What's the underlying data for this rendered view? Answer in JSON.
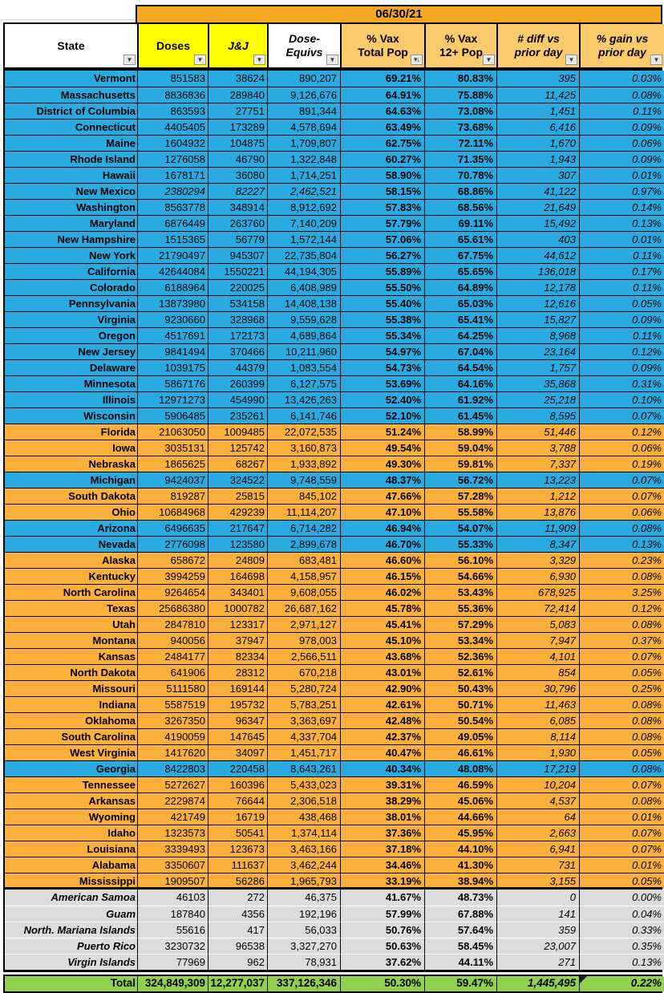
{
  "date": "06/30/21",
  "icons": {
    "filter_dropdown": "▼",
    "sorted_filter": "▾↓"
  },
  "colors": {
    "blue": "#29ABE2",
    "orange": "#FBB03B",
    "yellow": "#FFFF00",
    "date_orange": "#F7A823",
    "header_orange": "#FBCA6B",
    "terr_gray": "#DCDCDC",
    "green": "#92D050"
  },
  "columns": [
    {
      "key": "state",
      "label": "State"
    },
    {
      "key": "doses",
      "label": "Doses"
    },
    {
      "key": "jj",
      "label": "J&J"
    },
    {
      "key": "equiv",
      "label": "Dose-\nEquivs"
    },
    {
      "key": "vax_total",
      "label": "% Vax\nTotal Pop",
      "sorted": true
    },
    {
      "key": "vax_12",
      "label": "% Vax\n12+ Pop"
    },
    {
      "key": "diff",
      "label": "# diff vs\nprior day"
    },
    {
      "key": "gain",
      "label": "% gain vs\nprior day"
    }
  ],
  "state_rows": [
    {
      "state": "Vermont",
      "doses": "851583",
      "jj": "38624",
      "equiv": "890,207",
      "vax_total": "69.21%",
      "vax_12": "80.83%",
      "diff": "395",
      "gain": "0.03%",
      "bg": "blue"
    },
    {
      "state": "Massachusetts",
      "doses": "8836836",
      "jj": "289840",
      "equiv": "9,126,676",
      "vax_total": "64.91%",
      "vax_12": "75.88%",
      "diff": "11,425",
      "gain": "0.08%",
      "bg": "blue"
    },
    {
      "state": "District of Columbia",
      "doses": "863593",
      "jj": "27751",
      "equiv": "891,344",
      "vax_total": "64.63%",
      "vax_12": "73.08%",
      "diff": "1,451",
      "gain": "0.11%",
      "bg": "blue"
    },
    {
      "state": "Connecticut",
      "doses": "4405405",
      "jj": "173289",
      "equiv": "4,578,694",
      "vax_total": "63.49%",
      "vax_12": "73.68%",
      "diff": "6,416",
      "gain": "0.09%",
      "bg": "blue"
    },
    {
      "state": "Maine",
      "doses": "1604932",
      "jj": "104875",
      "equiv": "1,709,807",
      "vax_total": "62.75%",
      "vax_12": "72.11%",
      "diff": "1,670",
      "gain": "0.06%",
      "bg": "blue"
    },
    {
      "state": "Rhode Island",
      "doses": "1276058",
      "jj": "46790",
      "equiv": "1,322,848",
      "vax_total": "60.27%",
      "vax_12": "71.35%",
      "diff": "1,943",
      "gain": "0.09%",
      "bg": "blue"
    },
    {
      "state": "Hawaii",
      "doses": "1678171",
      "jj": "36080",
      "equiv": "1,714,251",
      "vax_total": "58.90%",
      "vax_12": "70.78%",
      "diff": "307",
      "gain": "0.01%",
      "bg": "blue"
    },
    {
      "state": "New Mexico",
      "doses": "2380294",
      "jj": "82227",
      "equiv": "2,462,521",
      "vax_total": "58.15%",
      "vax_12": "68.86%",
      "diff": "41,122",
      "gain": "0.97%",
      "bg": "blue",
      "italic_values": true
    },
    {
      "state": "Washington",
      "doses": "8563778",
      "jj": "348914",
      "equiv": "8,912,692",
      "vax_total": "57.83%",
      "vax_12": "68.56%",
      "diff": "21,649",
      "gain": "0.14%",
      "bg": "blue"
    },
    {
      "state": "Maryland",
      "doses": "6876449",
      "jj": "263760",
      "equiv": "7,140,209",
      "vax_total": "57.79%",
      "vax_12": "69.11%",
      "diff": "15,492",
      "gain": "0.13%",
      "bg": "blue"
    },
    {
      "state": "New Hampshire",
      "doses": "1515365",
      "jj": "56779",
      "equiv": "1,572,144",
      "vax_total": "57.06%",
      "vax_12": "65.61%",
      "diff": "403",
      "gain": "0.01%",
      "bg": "blue"
    },
    {
      "state": "New York",
      "doses": "21790497",
      "jj": "945307",
      "equiv": "22,735,804",
      "vax_total": "56.27%",
      "vax_12": "67.75%",
      "diff": "44,612",
      "gain": "0.11%",
      "bg": "blue"
    },
    {
      "state": "California",
      "doses": "42644084",
      "jj": "1550221",
      "equiv": "44,194,305",
      "vax_total": "55.89%",
      "vax_12": "65.65%",
      "diff": "136,018",
      "gain": "0.17%",
      "bg": "blue"
    },
    {
      "state": "Colorado",
      "doses": "6188964",
      "jj": "220025",
      "equiv": "6,408,989",
      "vax_total": "55.50%",
      "vax_12": "64.89%",
      "diff": "12,178",
      "gain": "0.11%",
      "bg": "blue"
    },
    {
      "state": "Pennsylvania",
      "doses": "13873980",
      "jj": "534158",
      "equiv": "14,408,138",
      "vax_total": "55.40%",
      "vax_12": "65.03%",
      "diff": "12,616",
      "gain": "0.05%",
      "bg": "blue"
    },
    {
      "state": "Virginia",
      "doses": "9230660",
      "jj": "328968",
      "equiv": "9,559,628",
      "vax_total": "55.38%",
      "vax_12": "65.41%",
      "diff": "15,827",
      "gain": "0.09%",
      "bg": "blue"
    },
    {
      "state": "Oregon",
      "doses": "4517691",
      "jj": "172173",
      "equiv": "4,689,864",
      "vax_total": "55.34%",
      "vax_12": "64.25%",
      "diff": "8,968",
      "gain": "0.11%",
      "bg": "blue"
    },
    {
      "state": "New Jersey",
      "doses": "9841494",
      "jj": "370466",
      "equiv": "10,211,960",
      "vax_total": "54.97%",
      "vax_12": "67.04%",
      "diff": "23,164",
      "gain": "0.12%",
      "bg": "blue"
    },
    {
      "state": "Delaware",
      "doses": "1039175",
      "jj": "44379",
      "equiv": "1,083,554",
      "vax_total": "54.73%",
      "vax_12": "64.54%",
      "diff": "1,757",
      "gain": "0.09%",
      "bg": "blue"
    },
    {
      "state": "Minnesota",
      "doses": "5867176",
      "jj": "260399",
      "equiv": "6,127,575",
      "vax_total": "53.69%",
      "vax_12": "64.16%",
      "diff": "35,868",
      "gain": "0.31%",
      "bg": "blue"
    },
    {
      "state": "Illinois",
      "doses": "12971273",
      "jj": "454990",
      "equiv": "13,426,263",
      "vax_total": "52.40%",
      "vax_12": "61.92%",
      "diff": "25,218",
      "gain": "0.10%",
      "bg": "blue"
    },
    {
      "state": "Wisconsin",
      "doses": "5906485",
      "jj": "235261",
      "equiv": "6,141,746",
      "vax_total": "52.10%",
      "vax_12": "61.45%",
      "diff": "8,595",
      "gain": "0.07%",
      "bg": "blue"
    },
    {
      "state": "Florida",
      "doses": "21063050",
      "jj": "1009485",
      "equiv": "22,072,535",
      "vax_total": "51.24%",
      "vax_12": "58.99%",
      "diff": "51,446",
      "gain": "0.12%",
      "bg": "orange"
    },
    {
      "state": "Iowa",
      "doses": "3035131",
      "jj": "125742",
      "equiv": "3,160,873",
      "vax_total": "49.54%",
      "vax_12": "59.04%",
      "diff": "3,788",
      "gain": "0.06%",
      "bg": "orange"
    },
    {
      "state": "Nebraska",
      "doses": "1865625",
      "jj": "68267",
      "equiv": "1,933,892",
      "vax_total": "49.30%",
      "vax_12": "59.81%",
      "diff": "7,337",
      "gain": "0.19%",
      "bg": "orange"
    },
    {
      "state": "Michigan",
      "doses": "9424037",
      "jj": "324522",
      "equiv": "9,748,559",
      "vax_total": "48.37%",
      "vax_12": "56.72%",
      "diff": "13,223",
      "gain": "0.07%",
      "bg": "blue"
    },
    {
      "state": "South Dakota",
      "doses": "819287",
      "jj": "25815",
      "equiv": "845,102",
      "vax_total": "47.66%",
      "vax_12": "57.28%",
      "diff": "1,212",
      "gain": "0.07%",
      "bg": "orange"
    },
    {
      "state": "Ohio",
      "doses": "10684968",
      "jj": "429239",
      "equiv": "11,114,207",
      "vax_total": "47.10%",
      "vax_12": "55.58%",
      "diff": "13,876",
      "gain": "0.06%",
      "bg": "orange"
    },
    {
      "state": "Arizona",
      "doses": "6496635",
      "jj": "217647",
      "equiv": "6,714,282",
      "vax_total": "46.94%",
      "vax_12": "54.07%",
      "diff": "11,909",
      "gain": "0.08%",
      "bg": "blue"
    },
    {
      "state": "Nevada",
      "doses": "2776098",
      "jj": "123580",
      "equiv": "2,899,678",
      "vax_total": "46.70%",
      "vax_12": "55.33%",
      "diff": "8,347",
      "gain": "0.13%",
      "bg": "blue"
    },
    {
      "state": "Alaska",
      "doses": "658672",
      "jj": "24809",
      "equiv": "683,481",
      "vax_total": "46.60%",
      "vax_12": "56.10%",
      "diff": "3,329",
      "gain": "0.23%",
      "bg": "orange"
    },
    {
      "state": "Kentucky",
      "doses": "3994259",
      "jj": "164698",
      "equiv": "4,158,957",
      "vax_total": "46.15%",
      "vax_12": "54.66%",
      "diff": "6,930",
      "gain": "0.08%",
      "bg": "orange"
    },
    {
      "state": "North Carolina",
      "doses": "9264654",
      "jj": "343401",
      "equiv": "9,608,055",
      "vax_total": "46.02%",
      "vax_12": "53.43%",
      "diff": "678,925",
      "gain": "3.25%",
      "bg": "orange"
    },
    {
      "state": "Texas",
      "doses": "25686380",
      "jj": "1000782",
      "equiv": "26,687,162",
      "vax_total": "45.78%",
      "vax_12": "55.36%",
      "diff": "72,414",
      "gain": "0.12%",
      "bg": "orange"
    },
    {
      "state": "Utah",
      "doses": "2847810",
      "jj": "123317",
      "equiv": "2,971,127",
      "vax_total": "45.41%",
      "vax_12": "57.29%",
      "diff": "5,083",
      "gain": "0.08%",
      "bg": "orange"
    },
    {
      "state": "Montana",
      "doses": "940056",
      "jj": "37947",
      "equiv": "978,003",
      "vax_total": "45.10%",
      "vax_12": "53.34%",
      "diff": "7,947",
      "gain": "0.37%",
      "bg": "orange"
    },
    {
      "state": "Kansas",
      "doses": "2484177",
      "jj": "82334",
      "equiv": "2,566,511",
      "vax_total": "43.68%",
      "vax_12": "52.36%",
      "diff": "4,101",
      "gain": "0.07%",
      "bg": "orange"
    },
    {
      "state": "North Dakota",
      "doses": "641906",
      "jj": "28312",
      "equiv": "670,218",
      "vax_total": "43.01%",
      "vax_12": "52.61%",
      "diff": "854",
      "gain": "0.05%",
      "bg": "orange"
    },
    {
      "state": "Missouri",
      "doses": "5111580",
      "jj": "169144",
      "equiv": "5,280,724",
      "vax_total": "42.90%",
      "vax_12": "50.43%",
      "diff": "30,796",
      "gain": "0.25%",
      "bg": "orange"
    },
    {
      "state": "Indiana",
      "doses": "5587519",
      "jj": "195732",
      "equiv": "5,783,251",
      "vax_total": "42.61%",
      "vax_12": "50.71%",
      "diff": "11,463",
      "gain": "0.08%",
      "bg": "orange"
    },
    {
      "state": "Oklahoma",
      "doses": "3267350",
      "jj": "96347",
      "equiv": "3,363,697",
      "vax_total": "42.48%",
      "vax_12": "50.54%",
      "diff": "6,085",
      "gain": "0.08%",
      "bg": "orange"
    },
    {
      "state": "South Carolina",
      "doses": "4190059",
      "jj": "147645",
      "equiv": "4,337,704",
      "vax_total": "42.37%",
      "vax_12": "49.05%",
      "diff": "8,114",
      "gain": "0.08%",
      "bg": "orange"
    },
    {
      "state": "West Virginia",
      "doses": "1417620",
      "jj": "34097",
      "equiv": "1,451,717",
      "vax_total": "40.47%",
      "vax_12": "46.61%",
      "diff": "1,930",
      "gain": "0.05%",
      "bg": "orange"
    },
    {
      "state": "Georgia",
      "doses": "8422803",
      "jj": "220458",
      "equiv": "8,643,261",
      "vax_total": "40.34%",
      "vax_12": "48.08%",
      "diff": "17,219",
      "gain": "0.08%",
      "bg": "blue"
    },
    {
      "state": "Tennessee",
      "doses": "5272627",
      "jj": "160396",
      "equiv": "5,433,023",
      "vax_total": "39.31%",
      "vax_12": "46.59%",
      "diff": "10,204",
      "gain": "0.07%",
      "bg": "orange"
    },
    {
      "state": "Arkansas",
      "doses": "2229874",
      "jj": "76644",
      "equiv": "2,306,518",
      "vax_total": "38.29%",
      "vax_12": "45.06%",
      "diff": "4,537",
      "gain": "0.08%",
      "bg": "orange"
    },
    {
      "state": "Wyoming",
      "doses": "421749",
      "jj": "16719",
      "equiv": "438,468",
      "vax_total": "38.01%",
      "vax_12": "44.66%",
      "diff": "64",
      "gain": "0.01%",
      "bg": "orange"
    },
    {
      "state": "Idaho",
      "doses": "1323573",
      "jj": "50541",
      "equiv": "1,374,114",
      "vax_total": "37.36%",
      "vax_12": "45.95%",
      "diff": "2,663",
      "gain": "0.07%",
      "bg": "orange"
    },
    {
      "state": "Louisiana",
      "doses": "3339493",
      "jj": "123673",
      "equiv": "3,463,166",
      "vax_total": "37.18%",
      "vax_12": "44.10%",
      "diff": "6,941",
      "gain": "0.07%",
      "bg": "orange"
    },
    {
      "state": "Alabama",
      "doses": "3350607",
      "jj": "111637",
      "equiv": "3,462,244",
      "vax_total": "34.46%",
      "vax_12": "41.30%",
      "diff": "731",
      "gain": "0.01%",
      "bg": "orange"
    },
    {
      "state": "Mississippi",
      "doses": "1909507",
      "jj": "56286",
      "equiv": "1,965,793",
      "vax_total": "33.19%",
      "vax_12": "38.94%",
      "diff": "3,155",
      "gain": "0.05%",
      "bg": "orange"
    }
  ],
  "territory_rows": [
    {
      "state": "American Samoa",
      "doses": "46103",
      "jj": "272",
      "equiv": "46,375",
      "vax_total": "41.67%",
      "vax_12": "48.73%",
      "diff": "0",
      "gain": "0.00%"
    },
    {
      "state": "Guam",
      "doses": "187840",
      "jj": "4356",
      "equiv": "192,196",
      "vax_total": "57.99%",
      "vax_12": "67.88%",
      "diff": "141",
      "gain": "0.04%"
    },
    {
      "state": "North. Mariana Islands",
      "doses": "55616",
      "jj": "417",
      "equiv": "56,033",
      "vax_total": "50.76%",
      "vax_12": "57.64%",
      "diff": "359",
      "gain": "0.33%"
    },
    {
      "state": "Puerto Rico",
      "doses": "3230732",
      "jj": "96538",
      "equiv": "3,327,270",
      "vax_total": "50.63%",
      "vax_12": "58.45%",
      "diff": "23,007",
      "gain": "0.35%"
    },
    {
      "state": "Virgin Islands",
      "doses": "77969",
      "jj": "962",
      "equiv": "78,931",
      "vax_total": "37.62%",
      "vax_12": "44.11%",
      "diff": "271",
      "gain": "0.13%"
    }
  ],
  "total_row": {
    "state": "Total",
    "doses": "324,849,309",
    "jj": "12,277,037",
    "equiv": "337,126,346",
    "vax_total": "50.30%",
    "vax_12": "59.47%",
    "diff": "1,445,495",
    "gain": "0.22%"
  }
}
